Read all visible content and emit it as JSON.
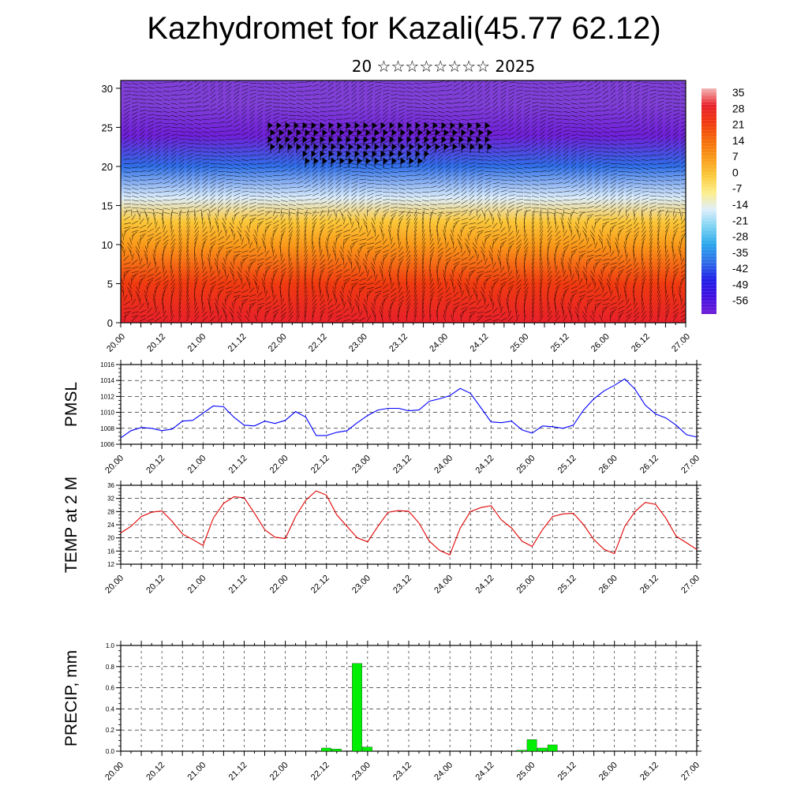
{
  "header": {
    "title": "Kazhydromet for Kazali(45.77 62.12)",
    "subtitle": "20 ☆☆☆☆☆☆☆☆ 2025"
  },
  "time_labels": [
    "20.00",
    "20.12",
    "21.00",
    "21.12",
    "22.00",
    "22.12",
    "23.00",
    "23.12",
    "24.00",
    "24.12",
    "25.00",
    "25.12",
    "26.00",
    "26.12",
    "27.00"
  ],
  "chart_data": [
    {
      "id": "cross-section",
      "type": "heatmap",
      "title": "",
      "xlabel": "",
      "ylabel": "",
      "x": [
        "20.00",
        "20.12",
        "21.00",
        "21.12",
        "22.00",
        "22.12",
        "23.00",
        "23.12",
        "24.00",
        "24.12",
        "25.00",
        "25.12",
        "26.00",
        "26.12",
        "27.00"
      ],
      "yticks": [
        0,
        5,
        10,
        15,
        20,
        25,
        30
      ],
      "ylim": [
        0,
        31
      ],
      "colorbar": {
        "labels": [
          "35",
          "28",
          "21",
          "14",
          "7",
          "0",
          "-7",
          "-14",
          "-21",
          "-28",
          "-35",
          "-42",
          "-49",
          "-56"
        ],
        "colors": [
          "#f4b6b6",
          "#e8202a",
          "#f03a10",
          "#f56b0a",
          "#f99a1a",
          "#fbc83a",
          "#fdee8a",
          "#ddeefc",
          "#7ad2f2",
          "#2aa6ec",
          "#2f6fe8",
          "#2020e8",
          "#4010e0",
          "#7020d8"
        ]
      },
      "temperature_profile": [
        {
          "height": 0,
          "temp": 30
        },
        {
          "height": 5,
          "temp": 20
        },
        {
          "height": 10,
          "temp": 8
        },
        {
          "height": 13,
          "temp": -2
        },
        {
          "height": 16,
          "temp": -14
        },
        {
          "height": 20,
          "temp": -38
        },
        {
          "height": 24,
          "temp": -56
        },
        {
          "height": 28,
          "temp": -62
        },
        {
          "height": 31,
          "temp": -66
        }
      ]
    },
    {
      "id": "pmsl",
      "type": "line",
      "title": "",
      "ylabel": "PMSL",
      "xlabel": "",
      "ylim": [
        1006,
        1016
      ],
      "yticks": [
        "1006",
        "1008",
        "1010",
        "1012",
        "1014",
        "1016"
      ],
      "color": "#0000ff",
      "x": [
        0,
        3,
        6,
        9,
        12,
        15,
        18,
        21,
        24,
        27,
        30,
        33,
        36,
        39,
        42,
        45,
        48,
        51,
        54,
        57,
        60,
        63,
        66,
        69,
        72,
        75,
        78,
        81,
        84,
        87,
        90,
        93,
        96,
        99,
        102,
        105,
        108,
        111,
        114,
        117,
        120,
        123,
        126,
        129,
        132,
        135,
        138,
        141,
        144,
        147,
        150,
        153,
        156,
        159,
        162,
        165,
        168
      ],
      "values": [
        1006.8,
        1007.7,
        1008.1,
        1008.0,
        1007.7,
        1007.9,
        1008.9,
        1009.0,
        1009.9,
        1010.8,
        1010.7,
        1009.4,
        1008.4,
        1008.3,
        1008.9,
        1008.6,
        1009.0,
        1010.1,
        1009.4,
        1007.1,
        1007.1,
        1007.5,
        1007.7,
        1008.7,
        1009.6,
        1010.3,
        1010.5,
        1010.5,
        1010.2,
        1010.3,
        1011.4,
        1011.7,
        1012.1,
        1013.0,
        1012.4,
        1010.6,
        1008.8,
        1008.7,
        1008.9,
        1007.8,
        1007.4,
        1008.3,
        1008.2,
        1008.0,
        1008.4,
        1010.3,
        1011.7,
        1012.7,
        1013.4,
        1014.2,
        1012.9,
        1010.9,
        1009.8,
        1009.3,
        1008.4,
        1007.2,
        1006.9
      ]
    },
    {
      "id": "temp2m",
      "type": "line",
      "title": "",
      "ylabel": "TEMP at 2 M",
      "xlabel": "",
      "ylim": [
        12,
        36
      ],
      "yticks": [
        "12",
        "16",
        "20",
        "24",
        "28",
        "32",
        "36"
      ],
      "color": "#e00000",
      "x": [
        0,
        3,
        6,
        9,
        12,
        15,
        18,
        21,
        24,
        27,
        30,
        33,
        36,
        39,
        42,
        45,
        48,
        51,
        54,
        57,
        60,
        63,
        66,
        69,
        72,
        75,
        78,
        81,
        84,
        87,
        90,
        93,
        96,
        99,
        102,
        105,
        108,
        111,
        114,
        117,
        120,
        123,
        126,
        129,
        132,
        135,
        138,
        141,
        144,
        147,
        150,
        153,
        156,
        159,
        162,
        165,
        168
      ],
      "values": [
        21.5,
        23.5,
        26.5,
        27.8,
        28.2,
        25.0,
        21.2,
        19.5,
        17.7,
        26.0,
        30.5,
        32.5,
        32.2,
        27.5,
        22.5,
        20.2,
        19.8,
        26.5,
        31.5,
        34.3,
        33.0,
        27.0,
        23.5,
        20.0,
        18.8,
        23.5,
        27.8,
        28.3,
        28.1,
        24.5,
        19.0,
        16.2,
        14.8,
        23.0,
        28.0,
        29.2,
        29.8,
        25.5,
        23.0,
        19.0,
        17.4,
        22.5,
        26.5,
        27.3,
        27.5,
        24.0,
        19.5,
        16.5,
        15.2,
        23.5,
        28.0,
        30.8,
        30.2,
        26.0,
        20.5,
        18.5,
        16.5
      ]
    },
    {
      "id": "precip",
      "type": "bar",
      "title": "",
      "ylabel": "PRECIP, mm",
      "xlabel": "",
      "ylim": [
        0,
        1.0
      ],
      "yticks": [
        "0.0",
        "0.2",
        "0.4",
        "0.6",
        "0.8",
        "1.0"
      ],
      "color": "#00ee00",
      "bars": [
        {
          "t": 60,
          "value": 0.03
        },
        {
          "t": 63,
          "value": 0.02
        },
        {
          "t": 69,
          "value": 0.83
        },
        {
          "t": 72,
          "value": 0.04
        },
        {
          "t": 117,
          "value": 0.01
        },
        {
          "t": 120,
          "value": 0.11
        },
        {
          "t": 123,
          "value": 0.03
        },
        {
          "t": 126,
          "value": 0.06
        }
      ]
    }
  ]
}
